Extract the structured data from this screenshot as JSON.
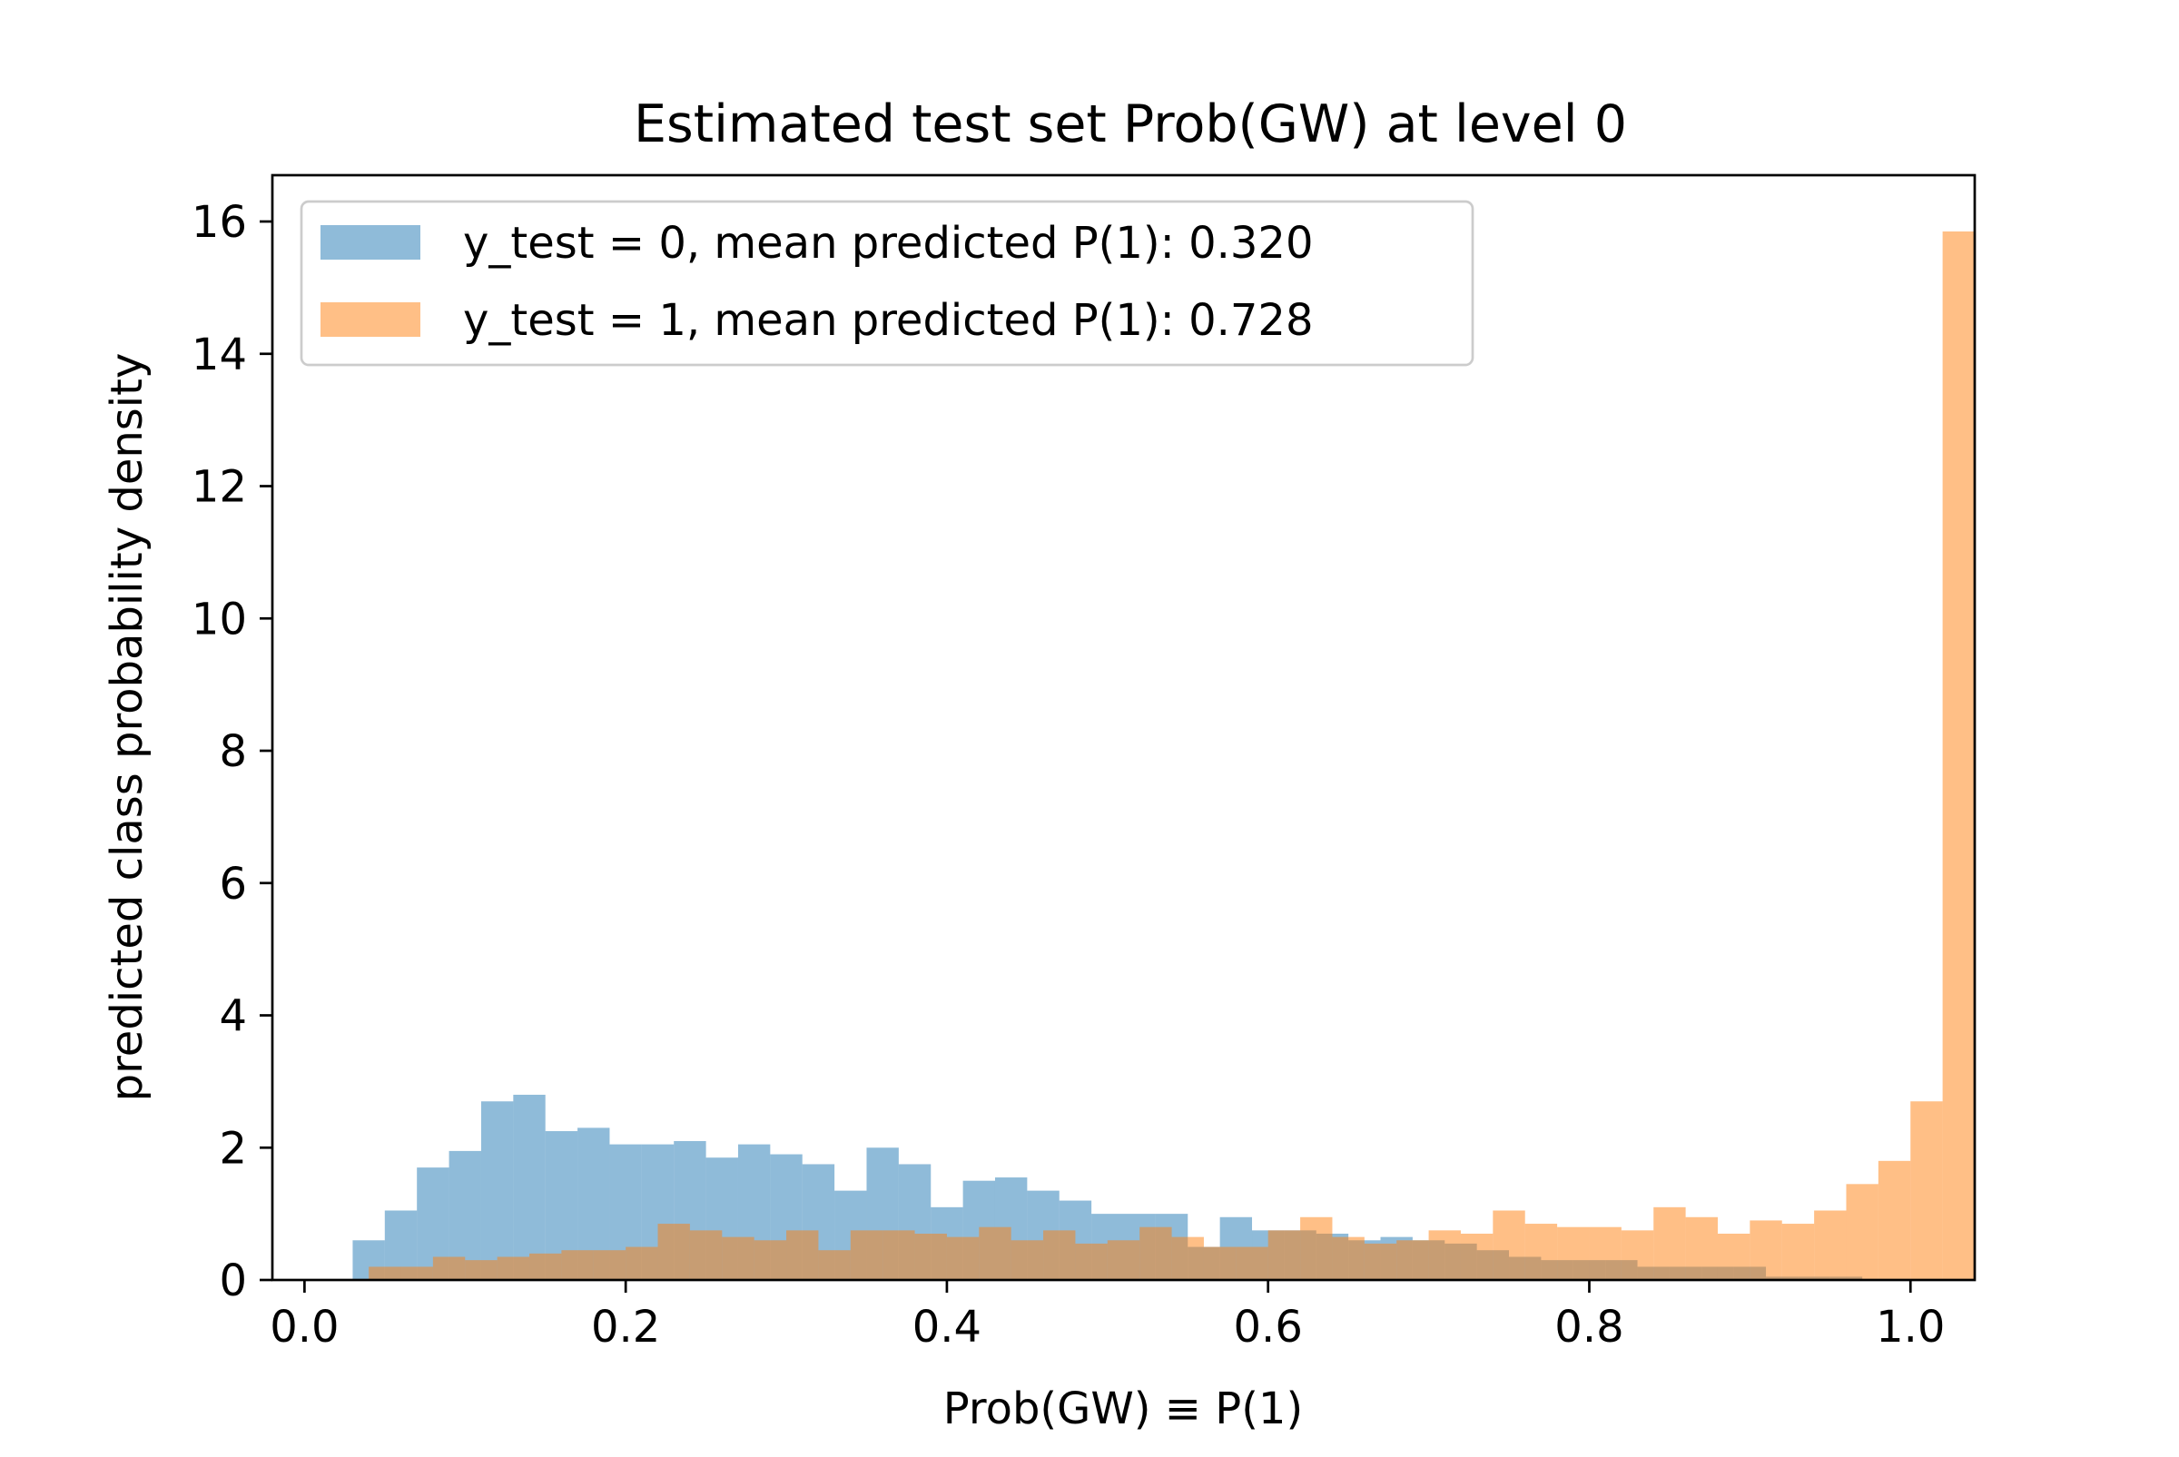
{
  "chart_data": {
    "type": "bar",
    "title": "Estimated test set Prob(GW) at level 0",
    "xlabel": "Prob(GW) ≡ P(1)",
    "ylabel": "predicted class probability density",
    "xlim": [
      -0.02,
      1.04
    ],
    "ylim": [
      0,
      16.7
    ],
    "xticks": [
      0.0,
      0.2,
      0.4,
      0.6,
      0.8,
      1.0
    ],
    "xtick_labels": [
      "0.0",
      "0.2",
      "0.4",
      "0.6",
      "0.8",
      "1.0"
    ],
    "yticks": [
      0,
      2,
      4,
      6,
      8,
      10,
      12,
      14,
      16
    ],
    "ytick_labels": [
      "0",
      "2",
      "4",
      "6",
      "8",
      "10",
      "12",
      "14",
      "16"
    ],
    "grid": false,
    "legend_position": "top-left",
    "bin_width": 0.02,
    "series": [
      {
        "name": "y_test = 0, mean predicted P(1): 0.320",
        "color": "#1f77b4",
        "opacity": 0.5,
        "bin_start": 0.03,
        "values": [
          0.6,
          1.05,
          1.7,
          1.95,
          2.7,
          2.8,
          2.25,
          2.3,
          2.05,
          2.05,
          2.1,
          1.85,
          2.05,
          1.9,
          1.75,
          1.35,
          2.0,
          1.75,
          1.1,
          1.5,
          1.55,
          1.35,
          1.2,
          1.0,
          1.0,
          1.0,
          0.5,
          0.95,
          0.75,
          0.75,
          0.7,
          0.6,
          0.65,
          0.6,
          0.55,
          0.45,
          0.35,
          0.3,
          0.3,
          0.3,
          0.2,
          0.2,
          0.2,
          0.2,
          0.05,
          0.05,
          0.05
        ]
      },
      {
        "name": "y_test = 1, mean predicted P(1): 0.728",
        "color": "#ff7f0e",
        "opacity": 0.5,
        "bin_start": 0.04,
        "values": [
          0.2,
          0.2,
          0.35,
          0.3,
          0.35,
          0.4,
          0.45,
          0.45,
          0.5,
          0.85,
          0.75,
          0.65,
          0.6,
          0.75,
          0.45,
          0.75,
          0.75,
          0.7,
          0.65,
          0.8,
          0.6,
          0.75,
          0.55,
          0.6,
          0.8,
          0.65,
          0.5,
          0.5,
          0.75,
          0.95,
          0.65,
          0.55,
          0.6,
          0.75,
          0.7,
          1.05,
          0.85,
          0.8,
          0.8,
          0.75,
          1.1,
          0.95,
          0.7,
          0.9,
          0.85,
          1.05,
          1.45,
          1.8,
          2.7,
          15.85
        ]
      }
    ]
  }
}
